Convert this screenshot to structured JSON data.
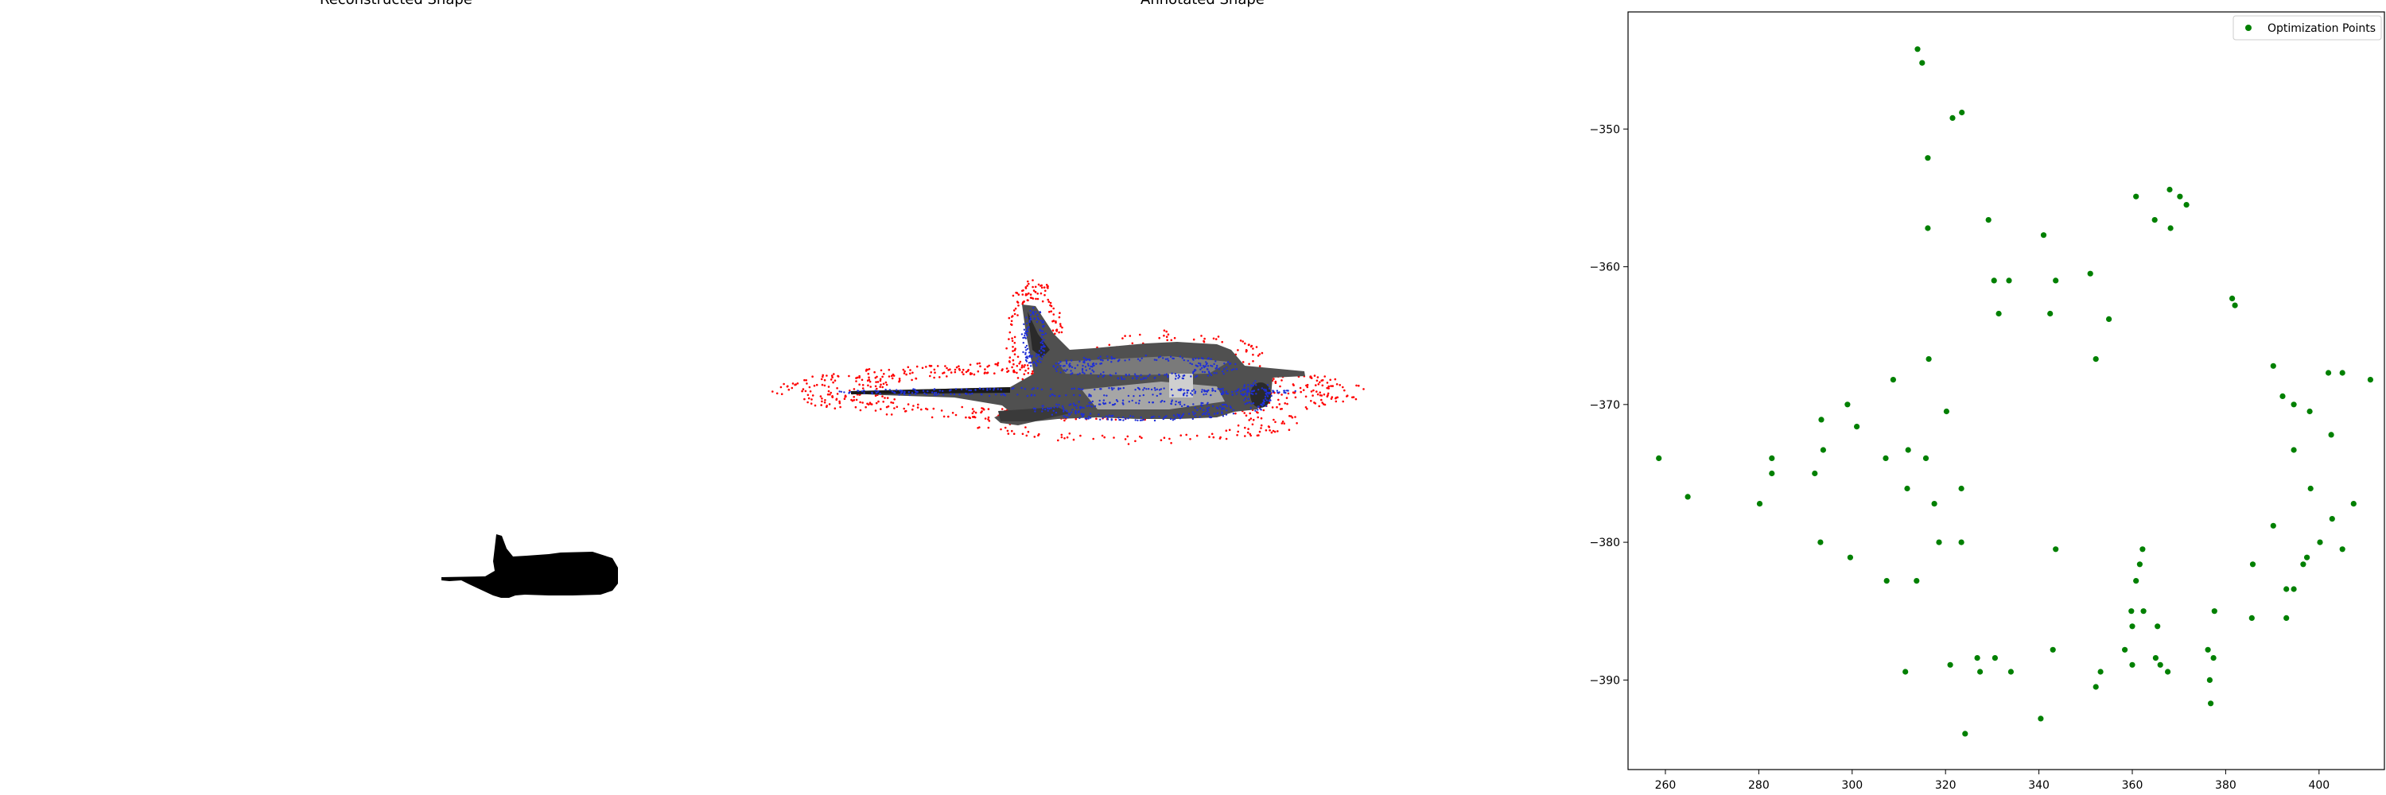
{
  "panels": {
    "left_title": "Reconstructed Shape",
    "middle_title": "Annotated Shape"
  },
  "colors": {
    "silhouette": "#000000",
    "outer_points": "#ff0000",
    "inner_points": "#1f2fd6",
    "optimization_points": "#008000"
  },
  "chart_data": {
    "type": "scatter",
    "title": "",
    "xlabel": "",
    "ylabel": "",
    "xlim": [
      252,
      414
    ],
    "ylim": [
      -396.5,
      -341.5
    ],
    "xticks": [
      260,
      280,
      300,
      320,
      340,
      360,
      380,
      400
    ],
    "yticks": [
      -350,
      -360,
      -370,
      -380,
      -390
    ],
    "grid": false,
    "legend_position": "top-right",
    "series": [
      {
        "name": "Optimization Points",
        "color": "#008000",
        "points": [
          [
            314,
            -344.2
          ],
          [
            315,
            -345.2
          ],
          [
            323.5,
            -348.8
          ],
          [
            321.5,
            -349.2
          ],
          [
            316.2,
            -352.1
          ],
          [
            316.2,
            -357.2
          ],
          [
            329.2,
            -356.6
          ],
          [
            330.4,
            -361.0
          ],
          [
            333.6,
            -361.0
          ],
          [
            331.4,
            -363.4
          ],
          [
            341.0,
            -357.7
          ],
          [
            343.6,
            -361.0
          ],
          [
            342.4,
            -363.4
          ],
          [
            351.0,
            -360.5
          ],
          [
            355.0,
            -363.8
          ],
          [
            352.2,
            -366.7
          ],
          [
            360.8,
            -354.9
          ],
          [
            364.8,
            -356.6
          ],
          [
            368.0,
            -354.4
          ],
          [
            370.2,
            -354.9
          ],
          [
            371.6,
            -355.5
          ],
          [
            368.2,
            -357.2
          ],
          [
            381.4,
            -362.3
          ],
          [
            382.0,
            -362.8
          ],
          [
            316.4,
            -366.7
          ],
          [
            390.2,
            -367.2
          ],
          [
            402.0,
            -367.7
          ],
          [
            405.0,
            -367.7
          ],
          [
            411.0,
            -368.2
          ],
          [
            392.2,
            -369.4
          ],
          [
            394.6,
            -370.0
          ],
          [
            398.0,
            -370.5
          ],
          [
            402.6,
            -372.2
          ],
          [
            394.6,
            -373.3
          ],
          [
            258.6,
            -373.9
          ],
          [
            282.8,
            -373.9
          ],
          [
            308.8,
            -368.2
          ],
          [
            299.0,
            -370.0
          ],
          [
            301.0,
            -371.6
          ],
          [
            293.4,
            -371.1
          ],
          [
            320.2,
            -370.5
          ],
          [
            293.8,
            -373.3
          ],
          [
            307.2,
            -373.9
          ],
          [
            312.0,
            -373.3
          ],
          [
            315.8,
            -373.9
          ],
          [
            282.8,
            -375.0
          ],
          [
            292.0,
            -375.0
          ],
          [
            264.8,
            -376.7
          ],
          [
            280.2,
            -377.2
          ],
          [
            311.8,
            -376.1
          ],
          [
            323.4,
            -376.1
          ],
          [
            317.6,
            -377.2
          ],
          [
            398.2,
            -376.1
          ],
          [
            407.4,
            -377.2
          ],
          [
            402.8,
            -378.3
          ],
          [
            390.2,
            -378.8
          ],
          [
            293.2,
            -380.0
          ],
          [
            318.6,
            -380.0
          ],
          [
            323.4,
            -380.0
          ],
          [
            299.6,
            -381.1
          ],
          [
            343.6,
            -380.5
          ],
          [
            362.2,
            -380.5
          ],
          [
            400.2,
            -380.0
          ],
          [
            405.0,
            -380.5
          ],
          [
            397.4,
            -381.1
          ],
          [
            361.6,
            -381.6
          ],
          [
            396.6,
            -381.6
          ],
          [
            385.8,
            -381.6
          ],
          [
            307.4,
            -382.8
          ],
          [
            313.8,
            -382.8
          ],
          [
            360.8,
            -382.8
          ],
          [
            393.0,
            -383.4
          ],
          [
            394.6,
            -383.4
          ],
          [
            359.8,
            -385.0
          ],
          [
            362.4,
            -385.0
          ],
          [
            377.6,
            -385.0
          ],
          [
            360.0,
            -386.1
          ],
          [
            365.4,
            -386.1
          ],
          [
            385.6,
            -385.5
          ],
          [
            393.0,
            -385.5
          ],
          [
            343.0,
            -387.8
          ],
          [
            358.4,
            -387.8
          ],
          [
            376.2,
            -387.8
          ],
          [
            326.8,
            -388.4
          ],
          [
            330.6,
            -388.4
          ],
          [
            365.0,
            -388.4
          ],
          [
            377.4,
            -388.4
          ],
          [
            366.0,
            -388.9
          ],
          [
            321.0,
            -388.9
          ],
          [
            360.0,
            -388.9
          ],
          [
            367.6,
            -389.4
          ],
          [
            311.4,
            -389.4
          ],
          [
            327.4,
            -389.4
          ],
          [
            334.0,
            -389.4
          ],
          [
            353.2,
            -389.4
          ],
          [
            376.6,
            -390.0
          ],
          [
            352.2,
            -390.5
          ],
          [
            376.8,
            -391.7
          ],
          [
            340.4,
            -392.8
          ],
          [
            324.2,
            -393.9
          ]
        ]
      }
    ]
  }
}
